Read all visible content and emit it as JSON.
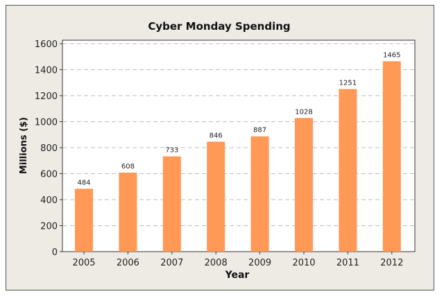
{
  "chart_data": {
    "type": "bar",
    "title": "Cyber Monday Spending",
    "xlabel": "Year",
    "ylabel": "Millions ($)",
    "categories": [
      "2005",
      "2006",
      "2007",
      "2008",
      "2009",
      "2010",
      "2011",
      "2012"
    ],
    "values": [
      484,
      608,
      733,
      846,
      887,
      1028,
      1251,
      1465
    ],
    "ylim": [
      0,
      1600
    ],
    "yticks": [
      0,
      200,
      400,
      600,
      800,
      1000,
      1200,
      1400,
      1600
    ],
    "grid": true,
    "bar_color": "#ff9955",
    "background": "#eeebe4"
  }
}
